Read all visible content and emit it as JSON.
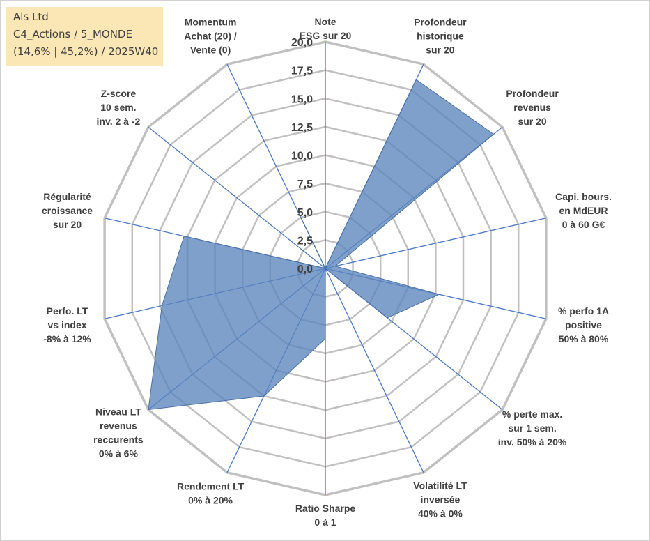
{
  "info": {
    "company": "Als Ltd",
    "category": "C4_Actions / 5_MONDE",
    "stats": "(14,6% | 45,2%) / 2025W40"
  },
  "colors": {
    "fill": "#5b85bc",
    "fill_stroke": "#4a6fa5",
    "grid": "#c0c0c0",
    "spoke": "#4a77c4",
    "info_bg": "#fbe7b6"
  },
  "chart_data": {
    "type": "radar",
    "title": "",
    "rmin": 0,
    "rmax": 20,
    "ticks": [
      "0,0",
      "2,5",
      "5,0",
      "7,5",
      "10,0",
      "12,5",
      "15,0",
      "17,5",
      "20,0"
    ],
    "axes": [
      {
        "label": [
          "Note",
          "ESG sur 20"
        ],
        "value": 0
      },
      {
        "label": [
          "Profondeur",
          "historique",
          "sur 20"
        ],
        "value": 18.5
      },
      {
        "label": [
          "Profondeur",
          "revenus",
          "sur 20"
        ],
        "value": 19.0
      },
      {
        "label": [
          "Capi. bours.",
          "en MdEUR",
          "0 à 60 G€"
        ],
        "value": 0.9
      },
      {
        "label": [
          "% perfo 1A",
          "positive",
          "50% à 80%"
        ],
        "value": 10.3
      },
      {
        "label": [
          "% perte max.",
          "sur 1 sem.",
          "inv. 50% à 20%"
        ],
        "value": 7.0
      },
      {
        "label": [
          "Volatilité LT",
          "inversée",
          "40% à 0%"
        ],
        "value": 0
      },
      {
        "label": [
          "Ratio Sharpe",
          "0 à 1"
        ],
        "value": 6.2
      },
      {
        "label": [
          "Rendement LT",
          "0% à 20%"
        ],
        "value": 12.5
      },
      {
        "label": [
          "Niveau LT",
          "revenus",
          "reccurents",
          "0% à 6%"
        ],
        "value": 20.0
      },
      {
        "label": [
          "Perfo. LT",
          "vs index",
          "-8% à 12%"
        ],
        "value": 14.8
      },
      {
        "label": [
          "Régularité",
          "croissance",
          "sur 20"
        ],
        "value": 12.8
      },
      {
        "label": [
          "Z-score",
          "10 sem.",
          "inv. 2 à -2"
        ],
        "value": 0
      },
      {
        "label": [
          "Momentum",
          "Achat (20) /",
          "Vente (0)"
        ],
        "value": 5.0
      }
    ]
  }
}
